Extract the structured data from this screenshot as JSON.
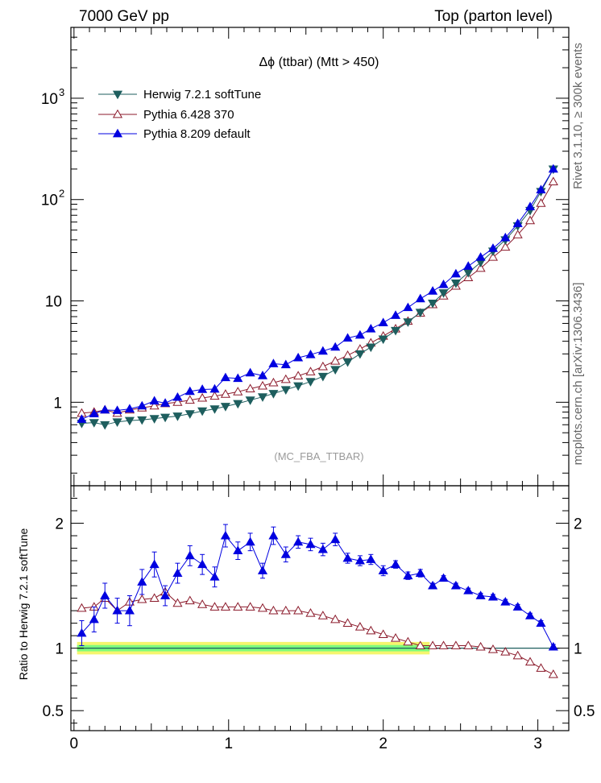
{
  "header": {
    "left": "7000 GeV pp",
    "right": "Top (parton level)"
  },
  "side_labels": {
    "rivet": "Rivet 3.1.10, ≥ 300k events",
    "mcplots": "mcplots.cern.ch [arXiv:1306.3436]"
  },
  "colors": {
    "herwig": "#1e5e5e",
    "pythia6": "#8b1a2b",
    "pythia8": "#0000e0",
    "band_green": "#7dfc7d",
    "band_yellow": "#f5f56e"
  },
  "chart_data": [
    {
      "type": "line",
      "panel": "main",
      "title": "Δϕ (ttbar) (Mtt > 450)",
      "watermark": "(MC_FBA_TTBAR)",
      "xlabel": "",
      "ylabel": "",
      "xlim": [
        -0.02,
        3.2
      ],
      "ylim": [
        0.15,
        5000
      ],
      "yscale": "log",
      "grid": false,
      "legend_position": "top-left",
      "yticks": [
        1,
        10,
        100,
        1000
      ],
      "ytick_labels": [
        "1",
        "10",
        "10^2",
        "10^3"
      ],
      "xticks": [
        0,
        1,
        2,
        3
      ],
      "x": [
        0.05,
        0.13,
        0.2,
        0.28,
        0.36,
        0.44,
        0.52,
        0.59,
        0.67,
        0.75,
        0.83,
        0.91,
        0.98,
        1.06,
        1.14,
        1.22,
        1.29,
        1.37,
        1.45,
        1.53,
        1.61,
        1.69,
        1.77,
        1.85,
        1.92,
        2.0,
        2.08,
        2.16,
        2.24,
        2.32,
        2.39,
        2.47,
        2.55,
        2.63,
        2.71,
        2.79,
        2.87,
        2.95,
        3.02,
        3.1
      ],
      "series": [
        {
          "name": "Herwig 7.2.1 softTune",
          "marker": "triangle-down-filled",
          "values": [
            0.62,
            0.63,
            0.6,
            0.64,
            0.66,
            0.67,
            0.69,
            0.71,
            0.73,
            0.77,
            0.82,
            0.86,
            0.91,
            0.97,
            1.05,
            1.13,
            1.22,
            1.33,
            1.45,
            1.6,
            1.8,
            2.1,
            2.5,
            3.0,
            3.5,
            4.2,
            5.1,
            6.2,
            7.7,
            9.5,
            12,
            15,
            19,
            24,
            31,
            40,
            55,
            78,
            120,
            200
          ]
        },
        {
          "name": "Pythia 6.428 370",
          "marker": "triangle-up-open",
          "values": [
            0.78,
            0.8,
            0.84,
            0.78,
            0.84,
            0.88,
            0.92,
            0.97,
            1.0,
            1.05,
            1.1,
            1.15,
            1.2,
            1.27,
            1.36,
            1.45,
            1.56,
            1.68,
            1.82,
            2.0,
            2.25,
            2.55,
            2.9,
            3.35,
            3.85,
            4.5,
            5.3,
            6.3,
            7.6,
            9.2,
            11.2,
            14,
            17,
            21,
            27,
            34,
            45,
            62,
            92,
            150
          ]
        },
        {
          "name": "Pythia 8.209 default",
          "marker": "triangle-up-filled",
          "values": [
            0.68,
            0.77,
            0.84,
            0.83,
            0.86,
            0.92,
            1.03,
            0.98,
            1.12,
            1.28,
            1.34,
            1.35,
            1.75,
            1.72,
            1.95,
            1.83,
            2.4,
            2.35,
            2.75,
            2.95,
            3.2,
            3.5,
            4.3,
            4.6,
            5.3,
            6.1,
            7.2,
            8.6,
            10.5,
            12.5,
            14.5,
            18.5,
            22,
            27,
            33,
            42,
            58,
            85,
            125,
            200
          ]
        }
      ]
    },
    {
      "type": "line",
      "panel": "ratio",
      "ylabel": "Ratio to Herwig 7.2.1 softTune",
      "xlabel": "",
      "xlim": [
        -0.02,
        3.2
      ],
      "ylim": [
        0.34,
        2.3
      ],
      "yscale": "linear",
      "yticks": [
        0.5,
        1,
        2
      ],
      "ytick_labels": [
        "0.5",
        "1",
        "2"
      ],
      "xticks": [
        0,
        1,
        2,
        3
      ],
      "xtick_labels": [
        "0",
        "1",
        "2",
        "3"
      ],
      "reference_line": 1,
      "band": {
        "green_halfwidth": 0.025,
        "yellow_halfwidth": 0.05,
        "x_end": 2.3
      },
      "x": [
        0.05,
        0.13,
        0.2,
        0.28,
        0.36,
        0.44,
        0.52,
        0.59,
        0.67,
        0.75,
        0.83,
        0.91,
        0.98,
        1.06,
        1.14,
        1.22,
        1.29,
        1.37,
        1.45,
        1.53,
        1.61,
        1.69,
        1.77,
        1.85,
        1.92,
        2.0,
        2.08,
        2.16,
        2.24,
        2.32,
        2.39,
        2.47,
        2.55,
        2.63,
        2.71,
        2.79,
        2.87,
        2.95,
        3.02,
        3.1
      ],
      "series": [
        {
          "name": "Pythia 6.428 370",
          "marker": "triangle-up-open",
          "values": [
            1.32,
            1.33,
            1.4,
            1.3,
            1.37,
            1.39,
            1.4,
            1.45,
            1.36,
            1.38,
            1.35,
            1.33,
            1.33,
            1.33,
            1.33,
            1.32,
            1.3,
            1.3,
            1.3,
            1.28,
            1.26,
            1.23,
            1.2,
            1.17,
            1.14,
            1.11,
            1.08,
            1.05,
            1.02,
            1.02,
            1.02,
            1.02,
            1.02,
            1.01,
            0.99,
            0.97,
            0.94,
            0.89,
            0.84,
            0.79
          ]
        },
        {
          "name": "Pythia 8.209 default",
          "marker": "triangle-up-filled",
          "errors": [
            0.1,
            0.1,
            0.1,
            0.1,
            0.12,
            0.1,
            0.1,
            0.08,
            0.08,
            0.08,
            0.08,
            0.08,
            0.09,
            0.07,
            0.07,
            0.06,
            0.07,
            0.06,
            0.05,
            0.05,
            0.05,
            0.05,
            0.04,
            0.04,
            0.04,
            0.04,
            0.03,
            0.03,
            0.03,
            0.02,
            0.02,
            0.02,
            0.02,
            0.02,
            0.02,
            0.02,
            0.02,
            0.02,
            0.02,
            0.02
          ],
          "values": [
            1.12,
            1.23,
            1.42,
            1.3,
            1.3,
            1.53,
            1.67,
            1.42,
            1.6,
            1.74,
            1.67,
            1.57,
            1.9,
            1.78,
            1.85,
            1.62,
            1.9,
            1.75,
            1.85,
            1.83,
            1.79,
            1.87,
            1.72,
            1.7,
            1.71,
            1.62,
            1.67,
            1.58,
            1.6,
            1.5,
            1.56,
            1.5,
            1.46,
            1.42,
            1.41,
            1.37,
            1.33,
            1.26,
            1.2,
            1.01
          ]
        }
      ]
    }
  ]
}
